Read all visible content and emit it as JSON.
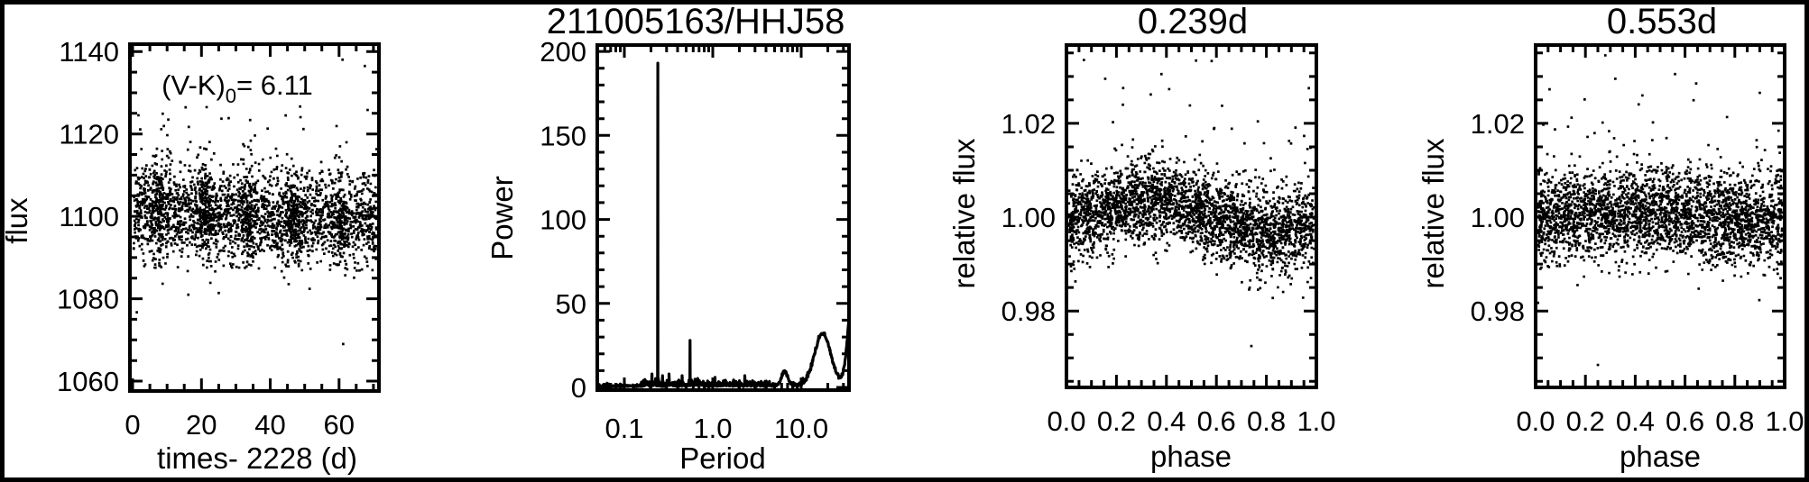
{
  "figure": {
    "background": "#ffffff",
    "frame_color": "#000000",
    "object_title": "211005163/HHJ58"
  },
  "chart_data": [
    {
      "id": "lightcurve",
      "type": "scatter",
      "title": "",
      "xlabel": "times- 2228 (d)",
      "ylabel": "flux",
      "annotation": {
        "pre": "(V-K)",
        "sub": "0",
        "post": "= 6.11"
      },
      "xlim": [
        -0.8,
        71.6
      ],
      "ylim": [
        1057.6,
        1141.8
      ],
      "xticks": [
        0,
        20,
        40,
        60
      ],
      "xtick_labels": [
        "0",
        "20",
        "40",
        "60"
      ],
      "xminor_step": 5,
      "yticks": [
        1060,
        1080,
        1100,
        1120,
        1140
      ],
      "ytick_labels": [
        "1060",
        "1080",
        "1100",
        "1120",
        "1140"
      ],
      "yminor_step": 5,
      "n_points": 2900,
      "distribution": {
        "x_span": [
          0.2,
          71.4
        ],
        "mean_start": 1101.2,
        "mean_end": 1098.2,
        "sigma": 5.3,
        "upper_tail": {
          "prob": 0.12,
          "scale": 6.5
        },
        "lower_tail": {
          "prob": 0.02,
          "scale": 5
        },
        "clumps": [
          8,
          21,
          33.5,
          47,
          60
        ],
        "clump_prob": 0.22,
        "clump_sigma": 1.3
      },
      "extreme_points": [
        [
          67.5,
          1136.5
        ],
        [
          50.2,
          1130.5
        ],
        [
          61.2,
          1069.0
        ],
        [
          21.5,
          1126.5
        ],
        [
          44.5,
          1124.5
        ]
      ]
    },
    {
      "id": "periodogram",
      "type": "line",
      "title": "211005163/HHJ58",
      "xlabel": "Period",
      "ylabel": "Power",
      "xscale": "log",
      "xlim": [
        0.0494,
        34.7
      ],
      "ylim": [
        -1.6,
        203.8
      ],
      "xticks": [
        0.1,
        1,
        10
      ],
      "xtick_labels": [
        "0.1",
        "1.0",
        "10.0"
      ],
      "yticks": [
        0,
        50,
        100,
        150,
        200
      ],
      "ytick_labels": [
        "0",
        "50",
        "100",
        "150",
        "200"
      ],
      "yminor_step": 10,
      "best_period_d": 0.239,
      "second_period_d": 0.553,
      "peaks": [
        {
          "period": 0.239,
          "power": 193,
          "shape": "spike"
        },
        {
          "period": 0.553,
          "power": 28,
          "shape": "spike"
        },
        {
          "period": 0.205,
          "power": 8,
          "shape": "spike"
        },
        {
          "period": 0.27,
          "power": 7,
          "shape": "spike"
        },
        {
          "period": 0.32,
          "power": 8,
          "shape": "spike"
        },
        {
          "period": 0.45,
          "power": 7,
          "shape": "spike"
        },
        {
          "period": 1.06,
          "power": 6,
          "shape": "spike"
        },
        {
          "period": 2.3,
          "power": 7,
          "shape": "spike"
        },
        {
          "period": 6.5,
          "power": 8,
          "shape": "bump",
          "width_dex": 0.035
        },
        {
          "period": 17.5,
          "power": 31,
          "shape": "bump",
          "width_dex": 0.09
        },
        {
          "period": 40,
          "power": 68,
          "shape": "bump",
          "width_dex": 0.06
        }
      ],
      "noise_floor": {
        "low": 0.6,
        "mid": 1.9,
        "high": 1.2
      }
    },
    {
      "id": "phase-folded-0239",
      "type": "scatter",
      "title": "0.239d",
      "xlabel": "phase",
      "ylabel": "relative flux",
      "xlim": [
        0,
        1
      ],
      "ylim": [
        0.9637,
        1.0367
      ],
      "xticks": [
        0,
        0.2,
        0.4,
        0.6,
        0.8,
        1
      ],
      "xtick_labels": [
        "0.0",
        "0.2",
        "0.4",
        "0.6",
        "0.8",
        "1.0"
      ],
      "xminor_step": 0.05,
      "yticks": [
        0.98,
        1.0,
        1.02
      ],
      "ytick_labels": [
        "0.98",
        "1.00",
        "1.02"
      ],
      "yminor_step": 0.005,
      "n_points": 3000,
      "distribution": {
        "x_span": [
          0,
          1
        ],
        "amplitude": 0.0032,
        "phase_of_max": 0.33,
        "sigma": 0.0042,
        "upper_tail": {
          "prob": 0.07,
          "scale": 0.006
        },
        "lower_tail": {
          "prob": 0.012,
          "scale": 0.004
        }
      },
      "extreme_points": [
        [
          0.07,
          1.0335
        ],
        [
          0.155,
          1.0295
        ],
        [
          0.74,
          0.9725
        ],
        [
          0.97,
          1.0275
        ],
        [
          0.38,
          1.0305
        ]
      ]
    },
    {
      "id": "phase-folded-0553",
      "type": "scatter",
      "title": "0.553d",
      "xlabel": "phase",
      "ylabel": "relative flux",
      "xlim": [
        0,
        1
      ],
      "ylim": [
        0.9637,
        1.0367
      ],
      "xticks": [
        0,
        0.2,
        0.4,
        0.6,
        0.8,
        1
      ],
      "xtick_labels": [
        "0.0",
        "0.2",
        "0.4",
        "0.6",
        "0.8",
        "1.0"
      ],
      "xminor_step": 0.05,
      "yticks": [
        0.98,
        1.0,
        1.02
      ],
      "ytick_labels": [
        "0.98",
        "1.00",
        "1.02"
      ],
      "yminor_step": 0.005,
      "n_points": 3000,
      "distribution": {
        "x_span": [
          0,
          1
        ],
        "amplitude": 0.0009,
        "phase_of_max": 0.45,
        "sigma": 0.0046,
        "upper_tail": {
          "prob": 0.07,
          "scale": 0.006
        },
        "lower_tail": {
          "prob": 0.012,
          "scale": 0.004
        }
      },
      "extreme_points": [
        [
          0.28,
          1.0345
        ],
        [
          0.25,
          0.9685
        ],
        [
          0.56,
          1.0305
        ],
        [
          0.9,
          1.0265
        ],
        [
          0.32,
          1.0295
        ]
      ]
    }
  ]
}
